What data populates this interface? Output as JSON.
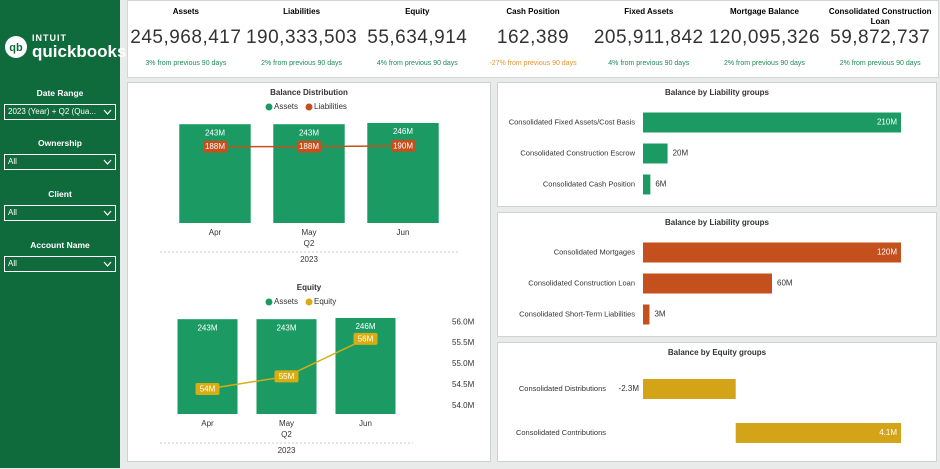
{
  "sidebar": {
    "logo": {
      "brand": "INTUIT",
      "product": "quickbooks"
    },
    "filters": [
      {
        "label": "Date Range",
        "value": "2023 (Year) + Q2 (Qua..."
      },
      {
        "label": "Ownership",
        "value": "All"
      },
      {
        "label": "Client",
        "value": "All"
      },
      {
        "label": "Account Name",
        "value": "All"
      }
    ]
  },
  "kpis": [
    {
      "label": "Assets",
      "value": "245,968,417",
      "change": "3% from previous 90 days",
      "color": "#1e8a57"
    },
    {
      "label": "Liabilities",
      "value": "190,333,503",
      "change": "2% from previous 90 days",
      "color": "#1e8a57"
    },
    {
      "label": "Equity",
      "value": "55,634,914",
      "change": "4% from previous 90 days",
      "color": "#1e8a57"
    },
    {
      "label": "Cash Position",
      "value": "162,389",
      "change": "-27% from previous 90 days",
      "color": "#e0942b"
    },
    {
      "label": "Fixed Assets",
      "value": "205,911,842",
      "change": "4% from previous 90 days",
      "color": "#1e8a57"
    },
    {
      "label": "Mortgage Balance",
      "value": "120,095,326",
      "change": "2% from previous 90 days",
      "color": "#1e8a57"
    },
    {
      "label": "Consolidated Construction Loan",
      "value": "59,872,737",
      "change": "2% from previous 90 days",
      "color": "#1e8a57"
    }
  ],
  "chart_data": [
    {
      "type": "combo",
      "title": "Balance Distribution",
      "categories": [
        "Apr",
        "May",
        "Jun"
      ],
      "x_subgroup": "Q2",
      "x_group": "2023",
      "series": [
        {
          "name": "Assets",
          "kind": "bar",
          "color": "#1b9b63",
          "values": [
            243,
            243,
            246
          ],
          "value_labels": [
            "243M",
            "243M",
            "246M"
          ]
        },
        {
          "name": "Liabilities",
          "kind": "line",
          "color": "#c4501e",
          "values": [
            188,
            188,
            190
          ],
          "value_labels": [
            "188M",
            "188M",
            "190M"
          ]
        }
      ]
    },
    {
      "type": "combo",
      "title": "Equity",
      "categories": [
        "Apr",
        "May",
        "Jun"
      ],
      "x_subgroup": "Q2",
      "x_group": "2023",
      "y2lim": [
        53.8,
        56.1
      ],
      "y2ticks": [
        {
          "value": 54,
          "label": "54.0M"
        },
        {
          "value": 54.5,
          "label": "54.5M"
        },
        {
          "value": 55,
          "label": "55.0M"
        },
        {
          "value": 55.5,
          "label": "55.5M"
        },
        {
          "value": 56,
          "label": "56.0M"
        }
      ],
      "series": [
        {
          "name": "Assets",
          "kind": "bar",
          "color": "#1b9b63",
          "values": [
            243,
            243,
            246
          ],
          "value_labels": [
            "243M",
            "243M",
            "246M"
          ]
        },
        {
          "name": "Equity",
          "kind": "line",
          "axis": "y2",
          "color": "#d9ad12",
          "values": [
            54.4,
            54.7,
            55.6
          ],
          "value_labels": [
            "54M",
            "55M",
            "56M"
          ]
        }
      ]
    },
    {
      "type": "hbar",
      "title": "Balance by Liability groups",
      "color": "#1b9b63",
      "categories": [
        "Consolidated Fixed Assets/Cost Basis",
        "Consolidated Construction Escrow",
        "Consolidated Cash Position"
      ],
      "values": [
        210,
        20,
        6
      ],
      "value_labels": [
        "210M",
        "20M",
        "6M"
      ]
    },
    {
      "type": "hbar",
      "title": "Balance by Liability groups",
      "color": "#c4501e",
      "categories": [
        "Consolidated Mortgages",
        "Consolidated Construction Loan",
        "Consolidated Short-Term Liabilities"
      ],
      "values": [
        120,
        60,
        3
      ],
      "value_labels": [
        "120M",
        "60M",
        "3M"
      ]
    },
    {
      "type": "hbar",
      "title": "Balance by Equity groups",
      "color": "#d4a418",
      "categories": [
        "Consolidated Distributions",
        "Consolidated Contributions"
      ],
      "values": [
        -2.3,
        4.1
      ],
      "value_labels": [
        "-2.3M",
        "4.1M"
      ]
    }
  ]
}
